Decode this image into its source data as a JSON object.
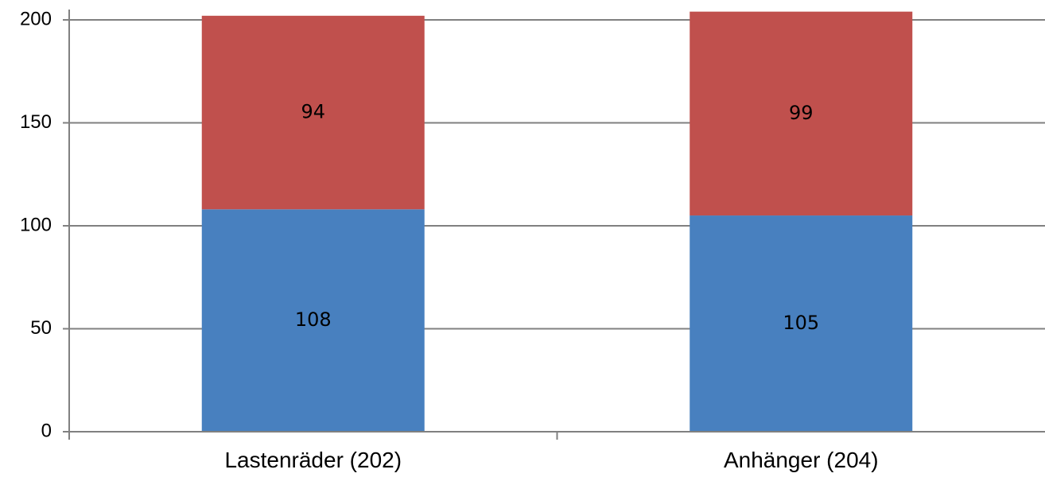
{
  "chart_data": {
    "type": "bar",
    "stacked": true,
    "categories": [
      "Lastenräder (202)",
      "Anhänger (204)"
    ],
    "series": [
      {
        "values": [
          108,
          105
        ],
        "color": "#4880BF"
      },
      {
        "values": [
          94,
          99
        ],
        "color": "#C0504D"
      }
    ],
    "ylim": [
      0,
      200
    ],
    "yticks": [
      0,
      50,
      100,
      150,
      200
    ],
    "grid": true,
    "legend": "none",
    "axis_color": "#808080",
    "grid_color": "#808080"
  }
}
